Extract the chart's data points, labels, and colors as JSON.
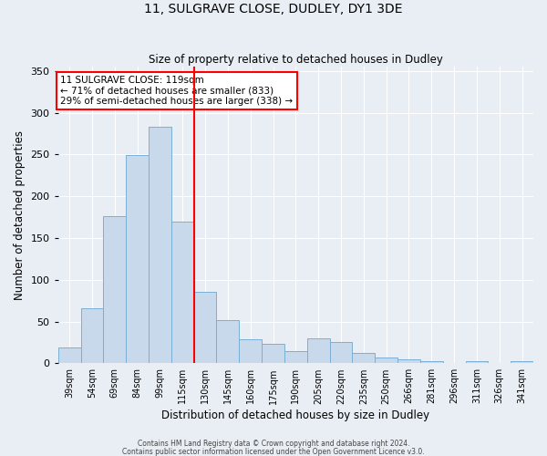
{
  "title": "11, SULGRAVE CLOSE, DUDLEY, DY1 3DE",
  "subtitle": "Size of property relative to detached houses in Dudley",
  "xlabel": "Distribution of detached houses by size in Dudley",
  "ylabel": "Number of detached properties",
  "footnote1": "Contains HM Land Registry data © Crown copyright and database right 2024.",
  "footnote2": "Contains public sector information licensed under the Open Government Licence v3.0.",
  "bar_labels": [
    "39sqm",
    "54sqm",
    "69sqm",
    "84sqm",
    "99sqm",
    "115sqm",
    "130sqm",
    "145sqm",
    "160sqm",
    "175sqm",
    "190sqm",
    "205sqm",
    "220sqm",
    "235sqm",
    "250sqm",
    "266sqm",
    "281sqm",
    "296sqm",
    "311sqm",
    "326sqm",
    "341sqm"
  ],
  "bar_values": [
    19,
    66,
    176,
    249,
    283,
    170,
    85,
    52,
    29,
    23,
    15,
    30,
    25,
    12,
    7,
    5,
    2,
    0,
    3,
    0,
    2
  ],
  "bar_color": "#c8d9ec",
  "bar_edge_color": "#7aafd4",
  "ylim": [
    0,
    355
  ],
  "yticks": [
    0,
    50,
    100,
    150,
    200,
    250,
    300,
    350
  ],
  "vline_x_index": 5.5,
  "vline_color": "red",
  "annotation_title": "11 SULGRAVE CLOSE: 119sqm",
  "annotation_line1": "← 71% of detached houses are smaller (833)",
  "annotation_line2": "29% of semi-detached houses are larger (338) →",
  "annotation_box_color": "red",
  "background_color": "#e8eef4",
  "grid_color": "#ffffff",
  "fig_width": 6.0,
  "fig_height": 5.0,
  "dpi": 100
}
